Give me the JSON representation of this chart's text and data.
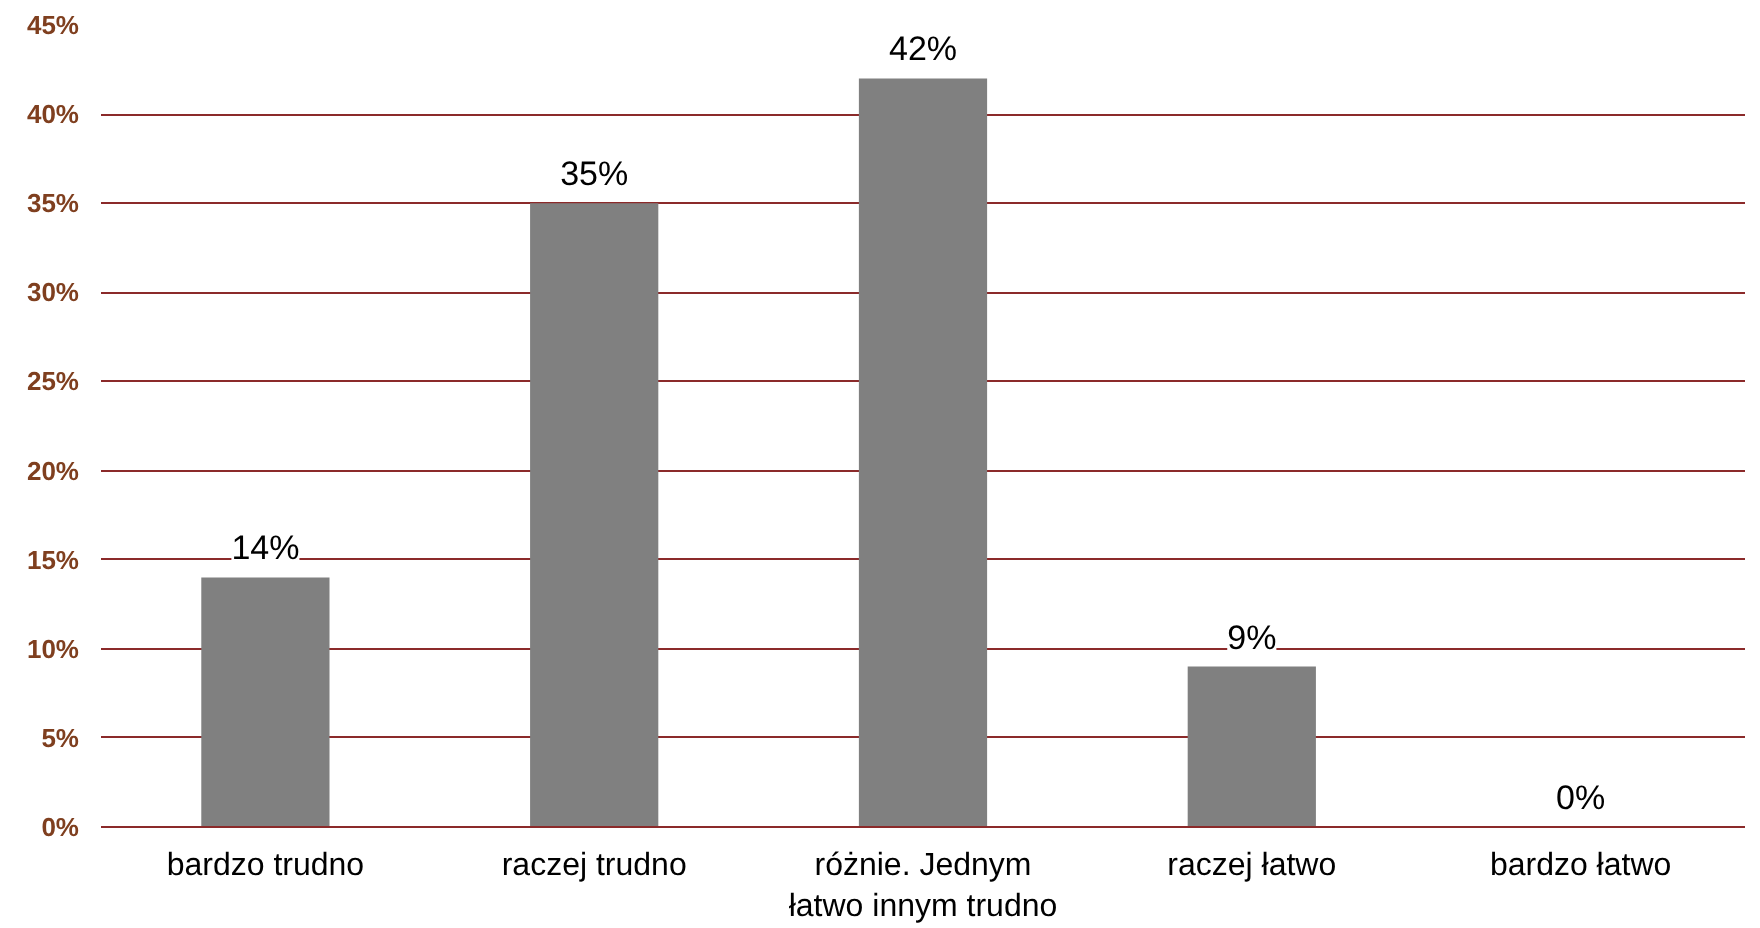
{
  "chart_data": {
    "type": "bar",
    "categories": [
      "bardzo trudno",
      "raczej trudno",
      "różnie. Jednym łatwo innym trudno",
      "raczej łatwo",
      "bardzo łatwo"
    ],
    "values": [
      14,
      35,
      42,
      9,
      0
    ],
    "value_labels": [
      "14%",
      "35%",
      "42%",
      "9%",
      "0%"
    ],
    "color": "#808080",
    "ylim": [
      0,
      45
    ],
    "yticks": [
      {
        "value": 0,
        "label": "0%"
      },
      {
        "value": 5,
        "label": "5%"
      },
      {
        "value": 10,
        "label": "10%"
      },
      {
        "value": 15,
        "label": "15%"
      },
      {
        "value": 20,
        "label": "20%"
      },
      {
        "value": 25,
        "label": "25%"
      },
      {
        "value": 30,
        "label": "30%"
      },
      {
        "value": 35,
        "label": "35%"
      },
      {
        "value": 40,
        "label": "40%"
      },
      {
        "value": 45,
        "label": "45%"
      }
    ],
    "grid": "y"
  }
}
